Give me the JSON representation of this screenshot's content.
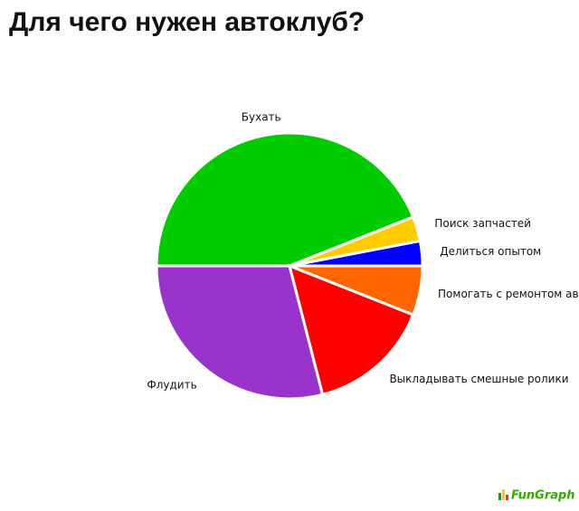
{
  "chart_data": {
    "type": "pie",
    "title": "Для чего нужен автоклуб?",
    "categories": [
      "Бухать",
      "Поиск запчастей",
      "Делиться опытом",
      "Помогать с ремонтом авто",
      "Выкладывать смешные ролики",
      "Флудить"
    ],
    "values": [
      44,
      3,
      3,
      6,
      15,
      29
    ],
    "colors": [
      "#00cc00",
      "#ffcc00",
      "#0000ff",
      "#ff6600",
      "#ff0000",
      "#9933cc"
    ],
    "logo": "FunGraph"
  }
}
